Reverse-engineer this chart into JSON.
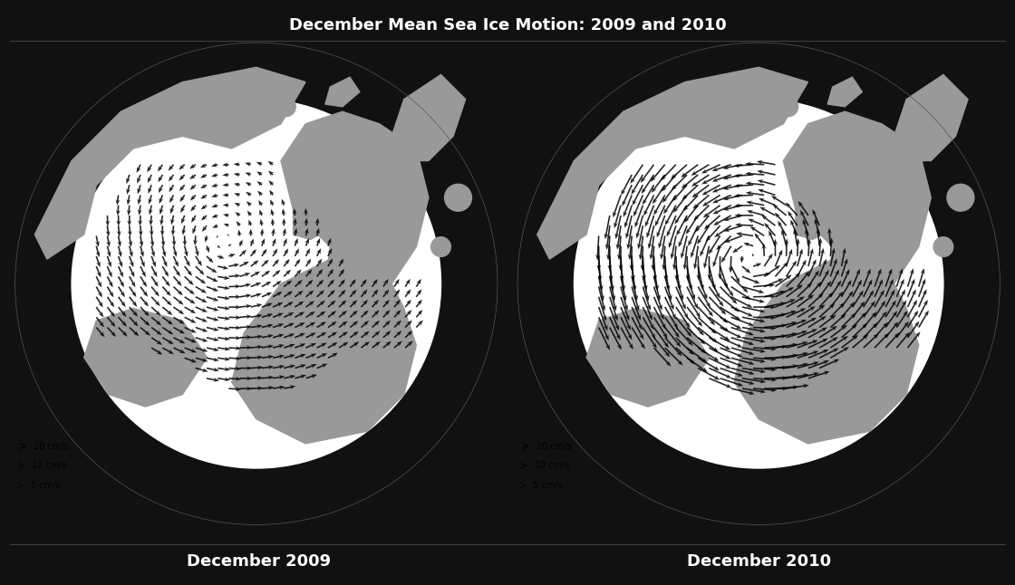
{
  "title": "December Mean Sea Ice Motion: 2009 and 2010",
  "subtitle_left": "December 2009",
  "subtitle_right": "December 2010",
  "background_color": "#ffffff",
  "land_color": "#999999",
  "ocean_color": "#ffffff",
  "arrow_color": "#000000",
  "title_fontsize": 13,
  "subtitle_fontsize": 13,
  "legend_labels": [
    "20 cm/s",
    "10 cm/s",
    "5 cm/s"
  ],
  "fig_bg": "#1a1a1a",
  "panel_bg": "#888888"
}
